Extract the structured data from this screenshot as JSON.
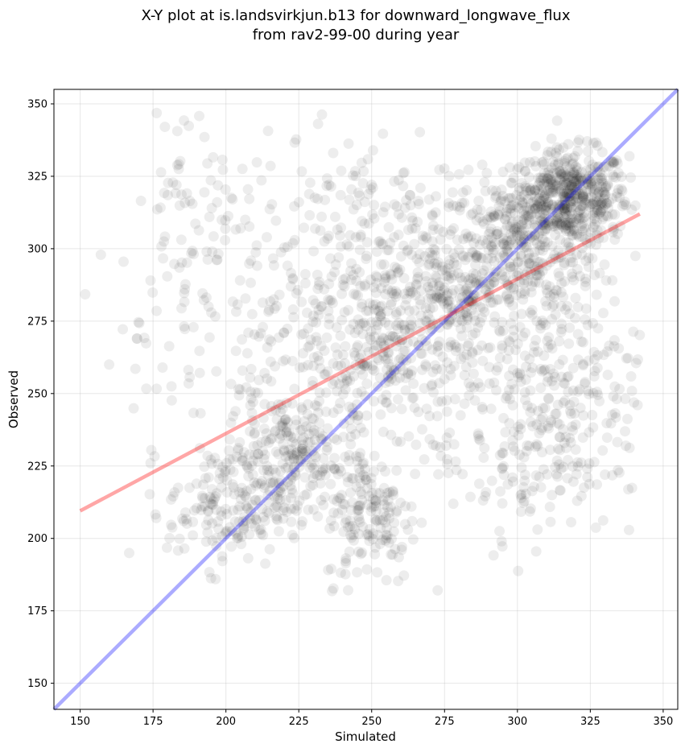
{
  "chart_data": {
    "type": "scatter",
    "title": "X-Y plot at is.landsvirkjun.b13 for downward_longwave_flux",
    "subtitle": "from rav2-99-00 during year",
    "xlabel": "Simulated",
    "ylabel": "Observed",
    "xlim": [
      141,
      355
    ],
    "ylim": [
      141,
      355
    ],
    "xticks": [
      150,
      175,
      200,
      225,
      250,
      275,
      300,
      325,
      350
    ],
    "yticks": [
      150,
      175,
      200,
      225,
      250,
      275,
      300,
      325,
      350
    ],
    "grid": true,
    "point_color": "#000000",
    "point_alpha": 0.07,
    "clusters": [
      {
        "cx": 318,
        "cy": 318,
        "sx": 10,
        "sy": 8,
        "n": 500
      },
      {
        "cx": 300,
        "cy": 302,
        "sx": 14,
        "sy": 12,
        "n": 300
      },
      {
        "cx": 280,
        "cy": 285,
        "sx": 13,
        "sy": 12,
        "n": 250
      },
      {
        "cx": 260,
        "cy": 262,
        "sx": 14,
        "sy": 12,
        "n": 220
      },
      {
        "cx": 222,
        "cy": 228,
        "sx": 11,
        "sy": 12,
        "n": 260
      },
      {
        "cx": 200,
        "cy": 210,
        "sx": 10,
        "sy": 10,
        "n": 160
      },
      {
        "cx": 250,
        "cy": 208,
        "sx": 8,
        "sy": 12,
        "n": 160
      },
      {
        "cx": 315,
        "cy": 255,
        "sx": 14,
        "sy": 22,
        "n": 260
      },
      {
        "cx": 245,
        "cy": 305,
        "sx": 20,
        "sy": 18,
        "n": 200
      },
      {
        "cx": 300,
        "cy": 230,
        "sx": 16,
        "sy": 16,
        "n": 120
      },
      {
        "cx": 190,
        "cy": 320,
        "sx": 10,
        "sy": 18,
        "n": 70
      },
      {
        "cx": 185,
        "cy": 270,
        "sx": 14,
        "sy": 20,
        "n": 60
      },
      {
        "cx": 230,
        "cy": 270,
        "sx": 15,
        "sy": 18,
        "n": 160
      }
    ],
    "series": [
      {
        "type": "line",
        "x": [
          141,
          355
        ],
        "y": [
          141,
          355
        ],
        "color": "#0000ff",
        "alpha": 0.33
      },
      {
        "type": "line",
        "x": [
          150,
          342
        ],
        "y": [
          209.5,
          312
        ],
        "color": "#ff0000",
        "alpha": 0.35
      }
    ]
  }
}
